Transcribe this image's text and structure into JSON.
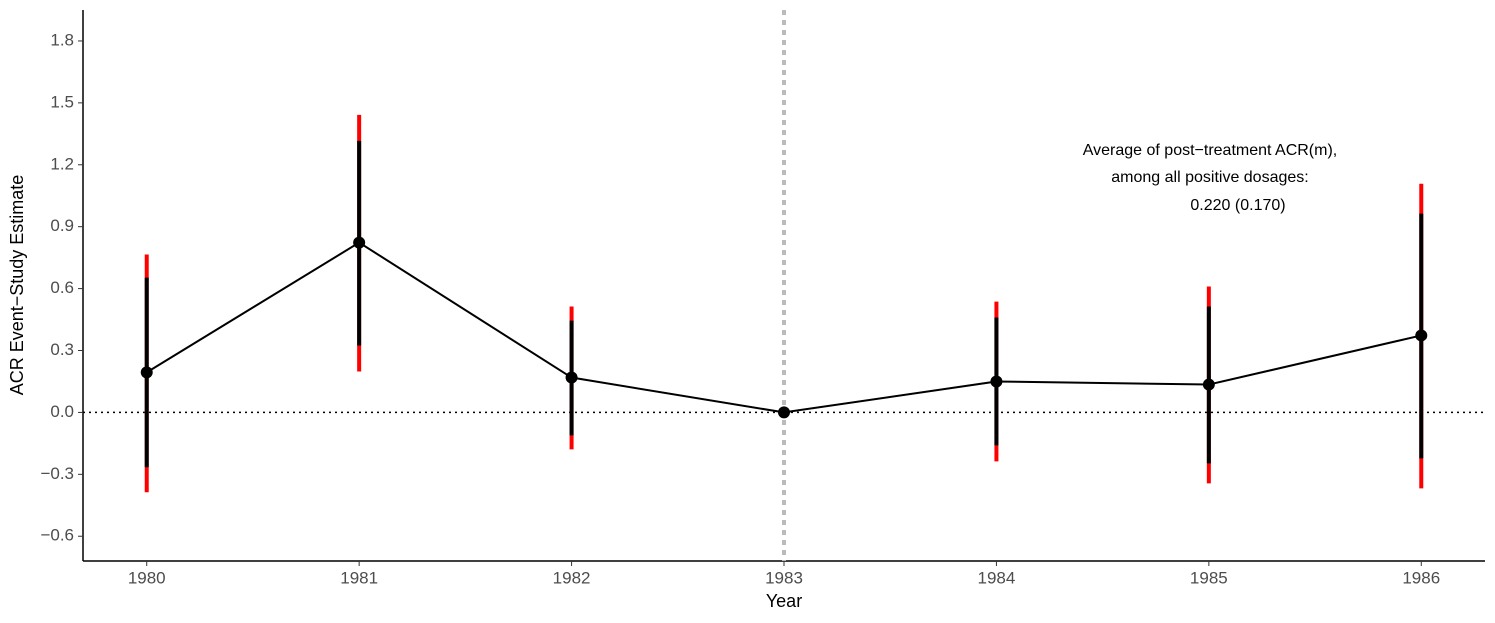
{
  "chart_data": {
    "type": "errorbar-line",
    "xlabel": "Year",
    "ylabel": "ACR Event−Study Estimate",
    "annotation": [
      "Average of post−treatment ACR(m),",
      "among all positive dosages:",
      "0.220 (0.170)"
    ],
    "x": [
      1980,
      1981,
      1982,
      1983,
      1984,
      1985,
      1986
    ],
    "values": [
      0.194,
      0.823,
      0.169,
      0,
      0.15,
      0.135,
      0.373
    ],
    "inner_lower": [
      -0.266,
      0.324,
      -0.111,
      null,
      -0.16,
      -0.247,
      -0.223
    ],
    "inner_upper": [
      0.653,
      1.316,
      0.445,
      null,
      0.46,
      0.513,
      0.963
    ],
    "outer_lower": [
      -0.387,
      0.198,
      -0.179,
      null,
      -0.237,
      -0.344,
      -0.368
    ],
    "outer_upper": [
      0.765,
      1.442,
      0.513,
      null,
      0.537,
      0.61,
      1.108
    ],
    "color": "#000000",
    "inner_color": "#000000",
    "outer_color": "#ff0000",
    "reference_y": 0,
    "treatment_x": 1983,
    "xlim": [
      1979.7,
      1986.3
    ],
    "ylim": [
      -0.72,
      1.95
    ],
    "xticks": [
      1980,
      1981,
      1982,
      1983,
      1984,
      1985,
      1986
    ],
    "yticks": [
      {
        "value": -0.6,
        "label": "−0.6"
      },
      {
        "value": -0.3,
        "label": "−0.3"
      },
      {
        "value": 0,
        "label": "0.0"
      },
      0.3,
      0.6,
      0.9,
      1.2,
      1.5,
      1.8
    ],
    "grid": false
  }
}
